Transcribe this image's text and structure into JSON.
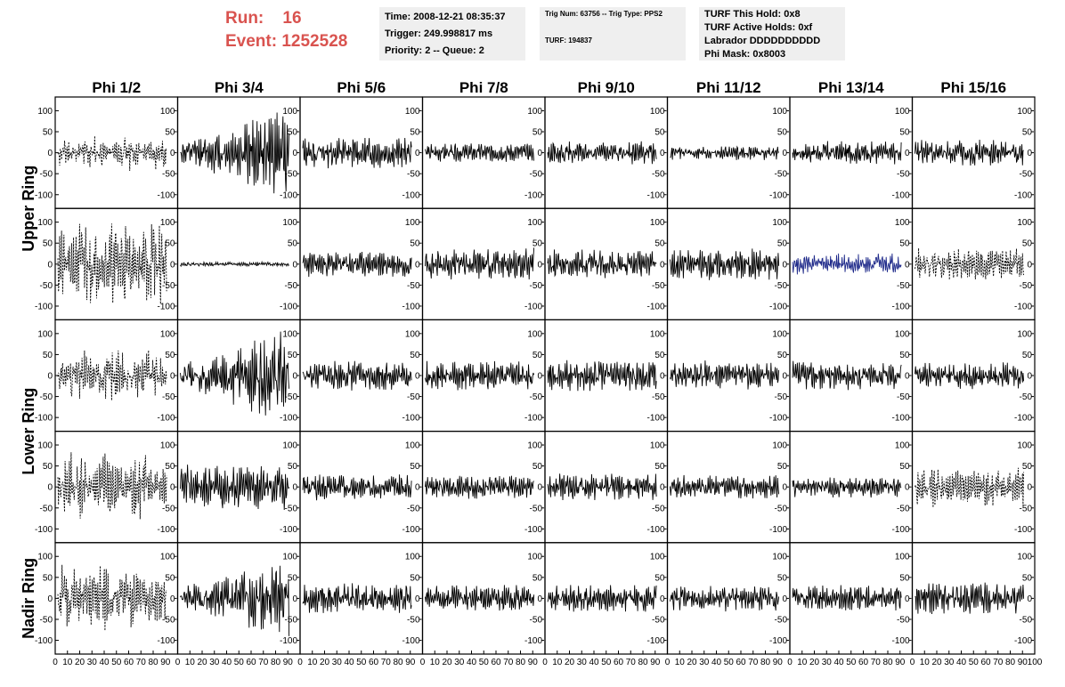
{
  "header": {
    "run_label": "Run:",
    "run_value": "16",
    "event_label": "Event:",
    "event_value": "1252528",
    "time_line": "Time: 2008-12-21 08:35:37",
    "trigger_line": "Trigger: 249.998817 ms",
    "priority_line": "Priority: 2 -- Queue: 2",
    "trig_line": "Trig Num: 63756 -- Trig Type: PPS2",
    "turf_line": "TURF: 194837",
    "turf_hold_line": "TURF This Hold: 0x8",
    "turf_active_line": "TURF Active Holds: 0xf",
    "labrador_line": "Labrador DDDDDDDDDD",
    "phi_mask_line": "Phi Mask: 0x8003"
  },
  "colors": {
    "header_red": "#d9534f",
    "trace": "#000000",
    "highlight_trace": "#1f2a8a",
    "info_bg": "#efefef"
  },
  "chart_data": {
    "type": "line",
    "columns": [
      "Phi 1/2",
      "Phi 3/4",
      "Phi 5/6",
      "Phi 7/8",
      "Phi 9/10",
      "Phi 11/12",
      "Phi 13/14",
      "Phi 15/16"
    ],
    "rings": [
      "Upper Ring",
      "Lower Ring",
      "Nadir Ring"
    ],
    "row_ring_groups": [
      {
        "ring": "Upper Ring",
        "rows": [
          0,
          1
        ]
      },
      {
        "ring": "Lower Ring",
        "rows": [
          2,
          3
        ]
      },
      {
        "ring": "Nadir Ring",
        "rows": [
          4
        ]
      }
    ],
    "ylim": [
      -120,
      120
    ],
    "ytick_values": [
      -100,
      -50,
      0,
      50,
      100
    ],
    "xlim": [
      0,
      100
    ],
    "xtick_values": [
      0,
      10,
      20,
      30,
      40,
      50,
      60,
      70,
      80,
      90,
      100
    ],
    "panels": [
      [
        {
          "amplitude": 35,
          "style": "dashed",
          "envelope": "bursty",
          "seed": 11
        },
        {
          "amplitude": 85,
          "style": "solid",
          "envelope": "ramp",
          "seed": 12
        },
        {
          "amplitude": 30,
          "style": "solid",
          "envelope": "flat",
          "seed": 13
        },
        {
          "amplitude": 18,
          "style": "solid",
          "envelope": "flat",
          "seed": 14
        },
        {
          "amplitude": 22,
          "style": "solid",
          "envelope": "flat",
          "seed": 15
        },
        {
          "amplitude": 14,
          "style": "solid",
          "envelope": "flat",
          "seed": 16
        },
        {
          "amplitude": 22,
          "style": "solid",
          "envelope": "flat",
          "seed": 17
        },
        {
          "amplitude": 25,
          "style": "solid",
          "envelope": "flat",
          "seed": 18
        }
      ],
      [
        {
          "amplitude": 90,
          "style": "dashed",
          "envelope": "bursty",
          "seed": 21
        },
        {
          "amplitude": 4,
          "style": "solid",
          "envelope": "flat",
          "seed": 22
        },
        {
          "amplitude": 25,
          "style": "solid",
          "envelope": "flat",
          "seed": 23
        },
        {
          "amplitude": 30,
          "style": "solid",
          "envelope": "flat",
          "seed": 24
        },
        {
          "amplitude": 28,
          "style": "solid",
          "envelope": "flat",
          "seed": 25
        },
        {
          "amplitude": 30,
          "style": "solid",
          "envelope": "flat",
          "seed": 26
        },
        {
          "amplitude": 20,
          "style": "solid",
          "envelope": "flat",
          "seed": 27,
          "color": "#1f2a8a"
        },
        {
          "amplitude": 30,
          "style": "dashed",
          "envelope": "flat",
          "seed": 28
        }
      ],
      [
        {
          "amplitude": 55,
          "style": "dashed",
          "envelope": "bursty",
          "seed": 31
        },
        {
          "amplitude": 90,
          "style": "solid",
          "envelope": "ramp",
          "seed": 32
        },
        {
          "amplitude": 28,
          "style": "solid",
          "envelope": "flat",
          "seed": 33
        },
        {
          "amplitude": 28,
          "style": "solid",
          "envelope": "flat",
          "seed": 34
        },
        {
          "amplitude": 30,
          "style": "solid",
          "envelope": "flat",
          "seed": 35
        },
        {
          "amplitude": 28,
          "style": "solid",
          "envelope": "flat",
          "seed": 36
        },
        {
          "amplitude": 28,
          "style": "solid",
          "envelope": "flat",
          "seed": 37
        },
        {
          "amplitude": 25,
          "style": "solid",
          "envelope": "flat",
          "seed": 38
        }
      ],
      [
        {
          "amplitude": 75,
          "style": "dashed",
          "envelope": "bursty",
          "seed": 41
        },
        {
          "amplitude": 45,
          "style": "solid",
          "envelope": "flat",
          "seed": 42
        },
        {
          "amplitude": 25,
          "style": "solid",
          "envelope": "flat",
          "seed": 43
        },
        {
          "amplitude": 22,
          "style": "solid",
          "envelope": "flat",
          "seed": 44
        },
        {
          "amplitude": 25,
          "style": "solid",
          "envelope": "flat",
          "seed": 45
        },
        {
          "amplitude": 22,
          "style": "solid",
          "envelope": "flat",
          "seed": 46
        },
        {
          "amplitude": 20,
          "style": "solid",
          "envelope": "flat",
          "seed": 47
        },
        {
          "amplitude": 40,
          "style": "dashed",
          "envelope": "flat",
          "seed": 48
        }
      ],
      [
        {
          "amplitude": 70,
          "style": "dashed",
          "envelope": "bursty",
          "seed": 51
        },
        {
          "amplitude": 80,
          "style": "solid",
          "envelope": "ramp",
          "seed": 52
        },
        {
          "amplitude": 28,
          "style": "solid",
          "envelope": "flat",
          "seed": 53
        },
        {
          "amplitude": 25,
          "style": "solid",
          "envelope": "flat",
          "seed": 54
        },
        {
          "amplitude": 25,
          "style": "solid",
          "envelope": "flat",
          "seed": 55
        },
        {
          "amplitude": 25,
          "style": "solid",
          "envelope": "flat",
          "seed": 56
        },
        {
          "amplitude": 25,
          "style": "solid",
          "envelope": "flat",
          "seed": 57
        },
        {
          "amplitude": 30,
          "style": "solid",
          "envelope": "flat",
          "seed": 58
        }
      ]
    ]
  }
}
